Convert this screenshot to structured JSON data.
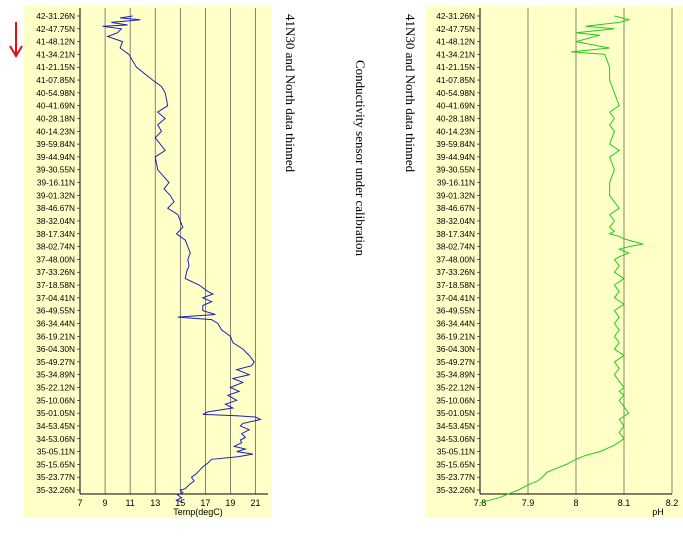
{
  "notes": {
    "left": "41N30 and North data thinned",
    "center": "Conductivity sensor under calibration",
    "right": "41N30 and North data thinned"
  },
  "colors": {
    "panel_bg": "#ffffc8",
    "temp_line": "#2020c0",
    "ph_line": "#22cc22",
    "arrow": "#e01010"
  },
  "arrow": {
    "icon": "red-down-arrow-icon"
  },
  "chart_data": [
    {
      "type": "line",
      "title": "",
      "xlabel": "Temp(degC)",
      "ylabel": "",
      "xlim": [
        7,
        22
      ],
      "xticks": [
        "7",
        "9",
        "11",
        "13",
        "15",
        "17",
        "19",
        "21"
      ],
      "grid": true,
      "y_tick_labels": [
        "42-31.26N",
        "42-47.75N",
        "41-48.12N",
        "41-34.21N",
        "41-21.15N",
        "41-07.85N",
        "40-54.98N",
        "40-41.69N",
        "40-28.18N",
        "40-14.23N",
        "39-59.84N",
        "39-44.94N",
        "39-30.55N",
        "39-16.11N",
        "39-01.32N",
        "38-46.67N",
        "38-32.04N",
        "38-17.34N",
        "38-02.74N",
        "37-48.00N",
        "37-33.26N",
        "37-18.58N",
        "37-04.41N",
        "36-49.55N",
        "36-34.44N",
        "36-19.21N",
        "36-04.30N",
        "35-49.27N",
        "35-34.89N",
        "35-22.12N",
        "35-10.06N",
        "35-01.05N",
        "34-53.45N",
        "34-53.06N",
        "35-05.11N",
        "35-15.65N",
        "35-23.77N",
        "35-32.26N"
      ],
      "series": [
        {
          "x": [
            11.2,
            10.2,
            11.8,
            9.5,
            10.8,
            8.8,
            10.3,
            10.0,
            9.2,
            10.4,
            10.2,
            10.9,
            11.5,
            12.8,
            13.5,
            13.8,
            14.0,
            13.2,
            13.8,
            13.2,
            13.5,
            13.0,
            13.4,
            13.8,
            13.0,
            13.2,
            14.1,
            13.7,
            14.2,
            14.5,
            14.0,
            14.8,
            15.0,
            15.2,
            14.7,
            15.4,
            15.8,
            15.6,
            15.7,
            15.5,
            15.4,
            16.5,
            17.2,
            17.6,
            16.8,
            17.5,
            16.8,
            16.8,
            17.8,
            14.8,
            17.5,
            18.0,
            18.3,
            19.0,
            19.2,
            20.0,
            20.5,
            20.9,
            20.7,
            19.5,
            20.5,
            19.2,
            20.0,
            19.0,
            19.7,
            18.8,
            19.5,
            18.6,
            19.2,
            17.2,
            16.8,
            19.5,
            21.0,
            21.4,
            20.0,
            19.8,
            20.5,
            19.9,
            20.2,
            19.8,
            19.9,
            19.3,
            20.2,
            19.5,
            20.8,
            19.6,
            17.5,
            17.2,
            16.8,
            16.5,
            16.2,
            15.9,
            16.1,
            15.7,
            15.4,
            15.0,
            15.2,
            14.8,
            15.1,
            14.7,
            15.0,
            15.2
          ],
          "y": [
            0.0,
            0.15,
            0.3,
            0.5,
            0.7,
            0.8,
            1.0,
            1.3,
            1.6,
            2.0,
            2.5,
            3.0,
            4.0,
            5.0,
            5.5,
            6.0,
            7.0,
            7.5,
            8.0,
            8.5,
            9.0,
            9.5,
            10.0,
            10.5,
            11.0,
            12.0,
            13.0,
            13.5,
            14.0,
            14.5,
            15.0,
            15.5,
            16.0,
            16.5,
            17.0,
            17.5,
            18.5,
            19.0,
            19.5,
            20.0,
            20.5,
            21.0,
            21.5,
            21.7,
            22.0,
            22.3,
            22.6,
            23.0,
            23.3,
            23.5,
            23.7,
            24.0,
            24.5,
            25.0,
            25.5,
            26.0,
            26.5,
            27.0,
            27.3,
            27.6,
            28.0,
            28.3,
            28.6,
            29.0,
            29.3,
            29.6,
            30.0,
            30.3,
            30.6,
            30.9,
            31.1,
            31.2,
            31.3,
            31.5,
            31.8,
            32.0,
            32.3,
            32.6,
            32.9,
            33.1,
            33.3,
            33.6,
            33.8,
            34.0,
            34.2,
            34.4,
            34.6,
            34.9,
            35.2,
            35.5,
            35.8,
            36.0,
            36.3,
            36.6,
            36.9,
            37.0,
            37.2,
            37.4,
            37.6,
            37.8,
            37.9,
            38.0
          ]
        }
      ]
    },
    {
      "type": "line",
      "title": "",
      "xlabel": "pH",
      "ylabel": "",
      "xlim": [
        7.8,
        8.2
      ],
      "xticks": [
        "7.8",
        "7.9",
        "8",
        "8.1",
        "8.2"
      ],
      "grid": true,
      "y_tick_labels": [
        "42-31.26N",
        "42-47.75N",
        "41-48.12N",
        "41-34.21N",
        "41-21.15N",
        "41-07.85N",
        "40-54.98N",
        "40-41.69N",
        "40-28.18N",
        "40-14.23N",
        "39-59.84N",
        "39-44.94N",
        "39-30.55N",
        "39-16.11N",
        "39-01.32N",
        "38-46.67N",
        "38-32.04N",
        "38-17.34N",
        "38-02.74N",
        "37-48.00N",
        "37-33.26N",
        "37-18.58N",
        "37-04.41N",
        "36-49.55N",
        "36-34.44N",
        "36-19.21N",
        "36-04.30N",
        "35-49.27N",
        "35-34.89N",
        "35-22.12N",
        "35-10.06N",
        "35-01.05N",
        "34-53.45N",
        "34-53.06N",
        "35-05.11N",
        "35-15.65N",
        "35-23.77N",
        "35-32.26N"
      ],
      "series": [
        {
          "x": [
            8.08,
            8.11,
            8.09,
            8.02,
            8.08,
            8.0,
            8.05,
            8.0,
            8.07,
            7.99,
            8.06,
            8.07,
            8.07,
            8.08,
            8.09,
            8.07,
            8.08,
            8.07,
            8.08,
            8.07,
            8.09,
            8.07,
            8.08,
            8.07,
            8.07,
            8.09,
            8.07,
            8.08,
            8.07,
            8.08,
            8.07,
            8.09,
            8.1,
            8.12,
            8.14,
            8.11,
            8.09,
            8.11,
            8.09,
            8.08,
            8.09,
            8.08,
            8.1,
            8.08,
            8.09,
            8.08,
            8.1,
            8.08,
            8.09,
            8.08,
            8.09,
            8.08,
            8.09,
            8.08,
            8.1,
            8.08,
            8.09,
            8.08,
            8.09,
            8.1,
            8.09,
            8.1,
            8.09,
            8.1,
            8.11,
            8.09,
            8.1,
            8.09,
            8.1,
            8.08,
            8.05,
            8.02,
            8.0,
            7.98,
            7.96,
            7.94,
            7.93,
            7.92,
            7.9,
            7.88,
            7.86,
            7.84,
            7.82,
            7.8
          ],
          "y": [
            0.0,
            0.3,
            0.5,
            0.8,
            1.0,
            1.3,
            1.5,
            2.0,
            2.5,
            2.8,
            3.0,
            4.0,
            5.0,
            6.0,
            7.0,
            7.5,
            8.0,
            8.5,
            9.0,
            10.0,
            10.5,
            11.0,
            12.0,
            13.0,
            14.0,
            15.0,
            15.5,
            16.0,
            16.5,
            16.8,
            17.0,
            17.2,
            17.4,
            17.6,
            17.8,
            18.0,
            18.2,
            18.5,
            18.8,
            19.0,
            19.5,
            20.0,
            20.5,
            21.0,
            21.5,
            22.0,
            22.5,
            23.0,
            23.5,
            24.0,
            24.5,
            25.0,
            25.5,
            26.0,
            26.5,
            27.0,
            27.5,
            28.0,
            28.5,
            29.0,
            29.3,
            29.6,
            30.0,
            30.5,
            31.0,
            31.5,
            32.0,
            32.5,
            33.0,
            33.5,
            34.0,
            34.3,
            34.6,
            35.0,
            35.3,
            35.6,
            36.0,
            36.3,
            36.6,
            37.0,
            37.3,
            37.6,
            37.8,
            38.0
          ]
        }
      ]
    }
  ]
}
